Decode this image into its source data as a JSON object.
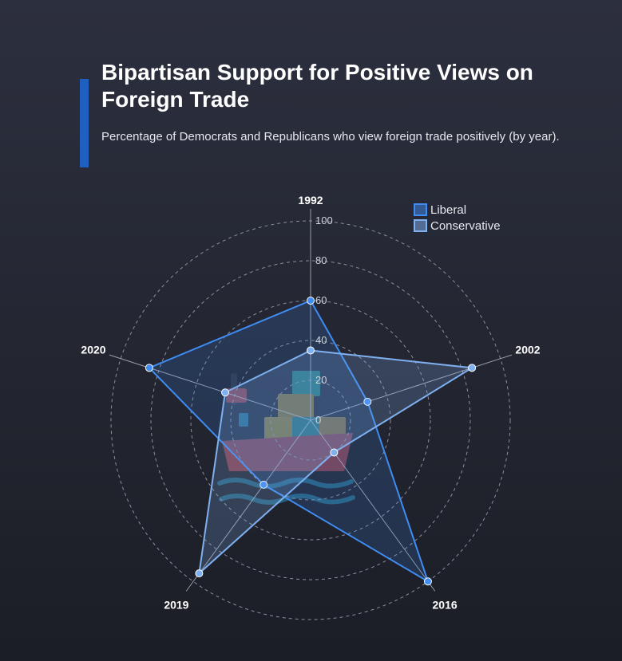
{
  "title": "Bipartisan Support for Positive Views on Foreign Trade",
  "subtitle": "Percentage of Democrats and Republicans who view foreign trade positively (by year).",
  "colors": {
    "accent_bar": "#1f5fbf",
    "liberal": "#3f8cf2",
    "conservative": "#7fb0f0"
  },
  "chart_data": {
    "type": "radar",
    "categories": [
      "1992",
      "2002",
      "2016",
      "2019",
      "2020"
    ],
    "series": [
      {
        "name": "Liberal",
        "values": [
          60,
          30,
          100,
          40,
          85
        ],
        "color": "#3f8cf2"
      },
      {
        "name": "Conservative",
        "values": [
          35,
          85,
          20,
          95,
          45
        ],
        "color": "#7fb0f0"
      }
    ],
    "r_ticks": [
      "0",
      "20",
      "40",
      "60",
      "80",
      "100"
    ],
    "rlim": [
      0,
      100
    ],
    "legend": "top-right",
    "background_icon": "cargo-ship-icon"
  }
}
